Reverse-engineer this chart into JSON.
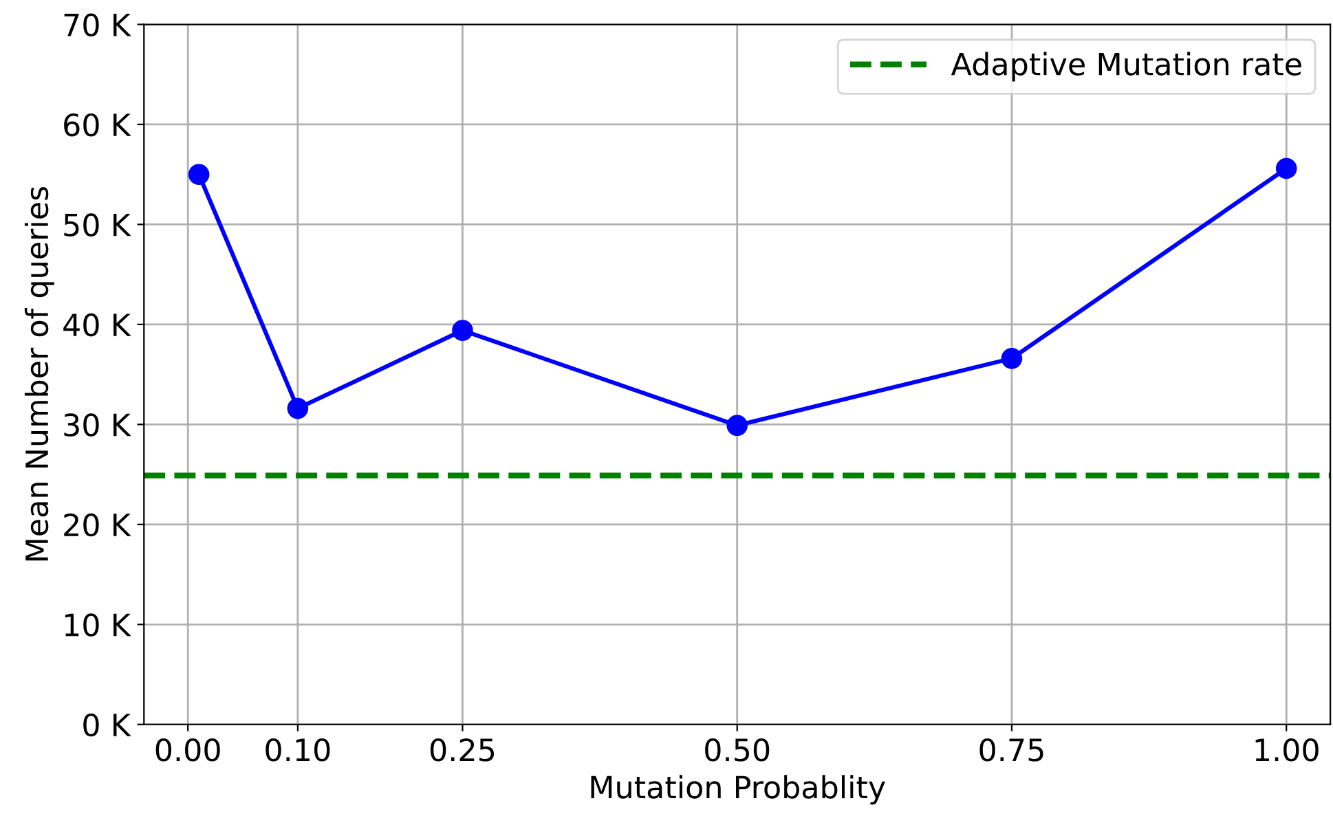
{
  "chart_data": {
    "type": "line",
    "xlabel": "Mutation Probablity",
    "ylabel": "Mean Number of queries",
    "x": [
      0.01,
      0.1,
      0.25,
      0.5,
      0.75,
      1.0
    ],
    "series": [
      {
        "color": "#0000ff",
        "values": [
          55000,
          31600,
          39400,
          29900,
          36600,
          55600
        ]
      }
    ],
    "marker": "circle",
    "line_style": "solid",
    "xlim": [
      -0.04,
      1.04
    ],
    "xticks": [
      {
        "value": 0,
        "label": "0.00"
      },
      {
        "value": 0.1,
        "label": "0.10"
      },
      {
        "value": 0.25,
        "label": "0.25"
      },
      {
        "value": 0.5,
        "label": "0.50"
      },
      {
        "value": 0.75,
        "label": "0.75"
      },
      {
        "value": 1.0,
        "label": "1.00"
      }
    ],
    "ylim": [
      0,
      70000
    ],
    "yticks": [
      {
        "value": 0,
        "label": "0 K"
      },
      {
        "value": 10000,
        "label": "10 K"
      },
      {
        "value": 20000,
        "label": "20 K"
      },
      {
        "value": 30000,
        "label": "30 K"
      },
      {
        "value": 40000,
        "label": "40 K"
      },
      {
        "value": 50000,
        "label": "50 K"
      },
      {
        "value": 60000,
        "label": "60 K"
      },
      {
        "value": 70000,
        "label": "70 K"
      }
    ],
    "ref_lines": [
      {
        "axis": "y",
        "value": 24900,
        "label": "Adaptive Mutation rate",
        "color": "#008000",
        "line_style": "dashed"
      }
    ],
    "grid": true,
    "legend": "top right"
  }
}
